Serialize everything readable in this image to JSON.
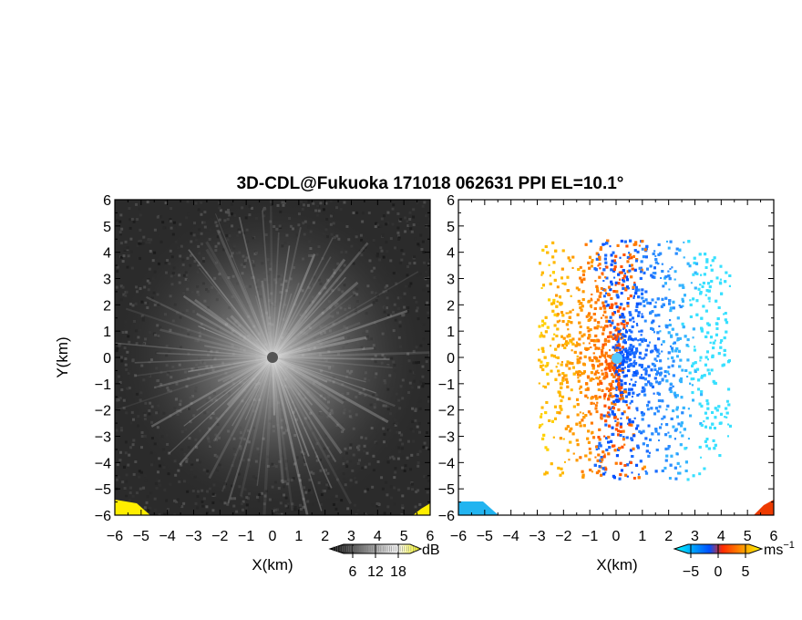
{
  "chart_data": {
    "title": "3D-CDL@Fukuoka 171018 062631 PPI EL=10.1°",
    "panels": [
      {
        "type": "heatmap",
        "variable": "reflectivity-snr",
        "xlabel": "X(km)",
        "ylabel": "Y(km)",
        "xlim": [
          -6,
          6
        ],
        "ylim": [
          -6,
          6
        ],
        "xticks": [
          "−6",
          "−5",
          "−4",
          "−3",
          "−2",
          "−1",
          "0",
          "1",
          "2",
          "3",
          "4",
          "5",
          "6"
        ],
        "yticks": [
          "6",
          "5",
          "4",
          "3",
          "2",
          "1",
          "0",
          "−1",
          "−2",
          "−3",
          "−4",
          "−5",
          "−6"
        ],
        "colorbar": {
          "unit": "dB",
          "ticks": [
            "6",
            "12",
            "18"
          ],
          "tick_values": [
            6,
            12,
            18
          ],
          "range": [
            0,
            24
          ],
          "colors": [
            "#000000",
            "#ffffff",
            "#ffff00"
          ]
        }
      },
      {
        "type": "heatmap",
        "variable": "doppler-velocity",
        "xlabel": "X(km)",
        "xlim": [
          -6,
          6
        ],
        "ylim": [
          -6,
          6
        ],
        "xticks": [
          "−6",
          "−5",
          "−4",
          "−3",
          "−2",
          "−1",
          "0",
          "1",
          "2",
          "3",
          "4",
          "5",
          "6"
        ],
        "yticks": [
          "6",
          "5",
          "4",
          "3",
          "2",
          "1",
          "0",
          "−1",
          "−2",
          "−3",
          "−4",
          "−5",
          "−6"
        ],
        "colorbar": {
          "unit": "ms",
          "unit_exponent": "−1",
          "ticks": [
            "−5",
            "0",
            "5"
          ],
          "tick_values": [
            -5,
            0,
            5
          ],
          "range": [
            -8,
            8
          ],
          "colors": [
            "#00ffff",
            "#0050ff",
            "#ff2a00",
            "#ffcc00",
            "#ffff00"
          ]
        }
      }
    ]
  }
}
